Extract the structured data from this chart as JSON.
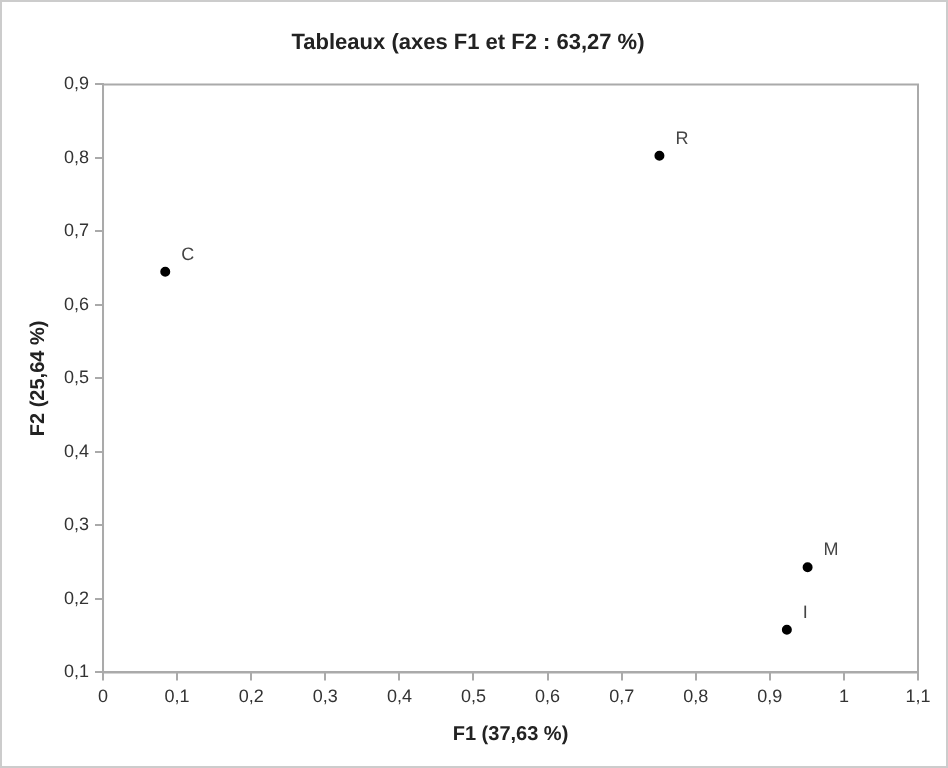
{
  "chart_data": {
    "type": "scatter",
    "title": "Tableaux (axes F1 et F2 : 63,27 %)",
    "xlabel": "F1 (37,63 %)",
    "ylabel": "F2 (25,64 %)",
    "x": [
      0.084,
      0.751,
      0.951,
      0.923
    ],
    "values": [
      0.645,
      0.803,
      0.243,
      0.158
    ],
    "color": "#000000",
    "marker": "circle",
    "xlim": [
      0,
      1.1
    ],
    "xticks": [
      {
        "value": 0,
        "label": "0"
      },
      {
        "value": 0.1,
        "label": "0,1"
      },
      {
        "value": 0.2,
        "label": "0,2"
      },
      {
        "value": 0.3,
        "label": "0,3"
      },
      {
        "value": 0.4,
        "label": "0,4"
      },
      {
        "value": 0.5,
        "label": "0,5"
      },
      {
        "value": 0.6,
        "label": "0,6"
      },
      {
        "value": 0.7,
        "label": "0,7"
      },
      {
        "value": 0.8,
        "label": "0,8"
      },
      {
        "value": 0.9,
        "label": "0,9"
      },
      {
        "value": 1,
        "label": "1"
      },
      {
        "value": 1.1,
        "label": "1,1"
      }
    ],
    "ylim": [
      0.1,
      0.9
    ],
    "yticks": [
      {
        "value": 0.1,
        "label": "0,1"
      },
      {
        "value": 0.2,
        "label": "0,2"
      },
      {
        "value": 0.3,
        "label": "0,3"
      },
      {
        "value": 0.4,
        "label": "0,4"
      },
      {
        "value": 0.5,
        "label": "0,5"
      },
      {
        "value": 0.6,
        "label": "0,6"
      },
      {
        "value": 0.7,
        "label": "0,7"
      },
      {
        "value": 0.8,
        "label": "0,8"
      },
      {
        "value": 0.9,
        "label": "0,9"
      }
    ],
    "grid": false,
    "legend": false,
    "annotations": [
      {
        "text": "C",
        "x": 0.084,
        "y": 0.645
      },
      {
        "text": "R",
        "x": 0.751,
        "y": 0.803
      },
      {
        "text": "M",
        "x": 0.951,
        "y": 0.243
      },
      {
        "text": "I",
        "x": 0.923,
        "y": 0.158
      }
    ]
  }
}
